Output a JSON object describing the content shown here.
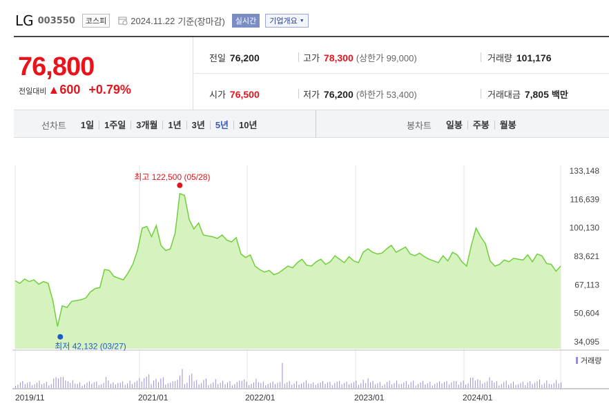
{
  "header": {
    "name": "LG",
    "code": "003550",
    "market": "코스피",
    "date": "2024.11.22",
    "basis": "기준(장마감)",
    "realtime_label": "실시간",
    "overview_label": "기업개요"
  },
  "quote": {
    "price": "76,800",
    "change_label": "전일대비",
    "change_arrow": "▲",
    "change_value": "600",
    "change_pct": "+0.79%",
    "stats": [
      {
        "label": "전일",
        "value": "76,200",
        "color": "normal"
      },
      {
        "label": "고가",
        "value": "78,300",
        "color": "red",
        "sub": "(상한가 99,000)"
      },
      {
        "label": "거래량",
        "value": "101,176",
        "color": "normal"
      },
      {
        "label": "시가",
        "value": "76,500",
        "color": "red"
      },
      {
        "label": "저가",
        "value": "76,200",
        "color": "normal",
        "sub": "(하한가 53,400)"
      },
      {
        "label": "거래대금",
        "value": "7,805",
        "color": "normal",
        "unit": "백만"
      }
    ]
  },
  "periods": {
    "line_title": "선차트",
    "line_options": [
      "1일",
      "1주일",
      "3개월",
      "1년",
      "3년",
      "5년",
      "10년"
    ],
    "line_selected": "5년",
    "candle_title": "봉차트",
    "candle_options": [
      "일봉",
      "주봉",
      "월봉"
    ]
  },
  "chart_data": {
    "type": "area",
    "y_ticks": [
      "133,148",
      "116,639",
      "100,130",
      "83,621",
      "67,113",
      "50,604",
      "34,095"
    ],
    "ylim": [
      34095,
      133148
    ],
    "x_ticks": [
      "2019/11",
      "2021/01",
      "2022/01",
      "2023/01",
      "2024/01"
    ],
    "high_label": "최고 122,500 (05/28)",
    "low_label": "최저 42,132 (03/27)",
    "volume_legend": "거래량",
    "colors": {
      "line": "#6fcf3a",
      "fill": "#d6f3bf",
      "up": "#e8131b",
      "low": "#1f5bc4",
      "volume": "#9b8ad6"
    },
    "series": [
      {
        "values": [
          69500,
          68000,
          70500,
          69000,
          70000,
          67500,
          69000,
          68000,
          58000,
          43000,
          55000,
          54000,
          57500,
          58000,
          58500,
          59500,
          63000,
          65000,
          65500,
          76000,
          75500,
          72000,
          71000,
          70000,
          74000,
          79000,
          87000,
          100000,
          101000,
          95000,
          101500,
          90000,
          87000,
          88000,
          97000,
          120000,
          119000,
          105000,
          99500,
          103000,
          96000,
          95500,
          95000,
          94000,
          96000,
          93000,
          92000,
          94500,
          85000,
          83000,
          84500,
          78000,
          76000,
          74500,
          75500,
          73000,
          74000,
          76000,
          78000,
          77000,
          80000,
          82000,
          78500,
          78000,
          80500,
          82000,
          79000,
          80500,
          84000,
          82000,
          80000,
          83500,
          81000,
          80000,
          86000,
          88000,
          86000,
          85000,
          85500,
          88000,
          90000,
          86000,
          87500,
          89000,
          85000,
          84000,
          85500,
          83500,
          82000,
          81000,
          80000,
          84000,
          81000,
          86000,
          84500,
          80500,
          78000,
          90000,
          100000,
          95000,
          91000,
          81000,
          78000,
          79000,
          81500,
          80500,
          82500,
          82000,
          81500,
          84500,
          80500,
          85000,
          84000,
          79500,
          79000,
          75000,
          78000
        ]
      }
    ]
  }
}
